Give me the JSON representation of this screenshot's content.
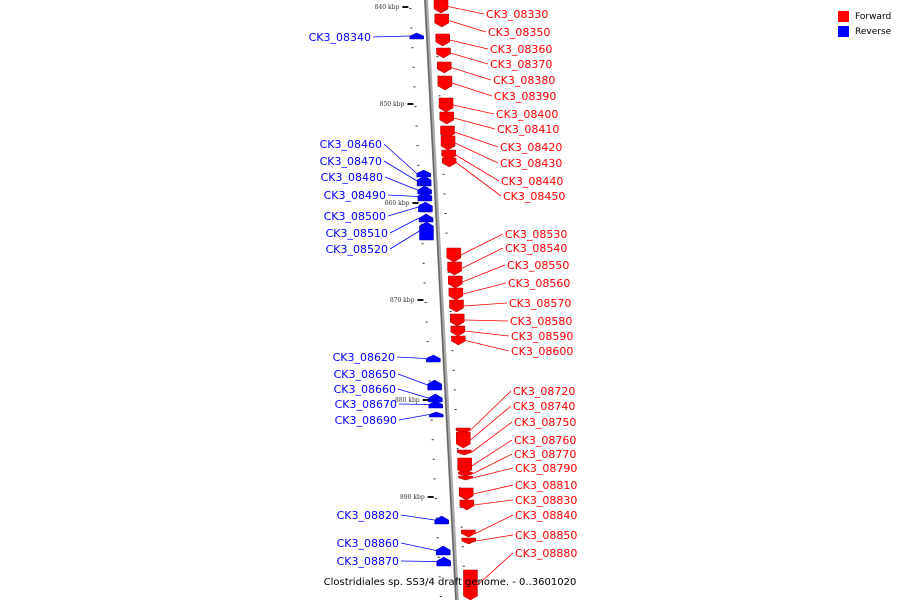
{
  "caption": "Clostridiales sp. SS3/4 draft genome. - 0..3601020",
  "legend": [
    {
      "label": "Forward",
      "color": "#ff0000"
    },
    {
      "label": "Reverse",
      "color": "#0000ff"
    }
  ],
  "ticks": [
    "840 kbp",
    "850 kbp",
    "860 kbp",
    "870 kbp",
    "880 kbp",
    "890 kbp"
  ],
  "forward_genes": [
    "CK3_08330",
    "CK3_08350",
    "CK3_08360",
    "CK3_08370",
    "CK3_08380",
    "CK3_08390",
    "CK3_08400",
    "CK3_08410",
    "CK3_08420",
    "CK3_08430",
    "CK3_08440",
    "CK3_08450",
    "CK3_08530",
    "CK3_08540",
    "CK3_08550",
    "CK3_08560",
    "CK3_08570",
    "CK3_08580",
    "CK3_08590",
    "CK3_08600",
    "CK3_08720",
    "CK3_08740",
    "CK3_08750",
    "CK3_08760",
    "CK3_08770",
    "CK3_08790",
    "CK3_08810",
    "CK3_08830",
    "CK3_08840",
    "CK3_08850",
    "CK3_08880"
  ],
  "reverse_genes": [
    "CK3_08340",
    "CK3_08460",
    "CK3_08470",
    "CK3_08480",
    "CK3_08490",
    "CK3_08500",
    "CK3_08510",
    "CK3_08520",
    "CK3_08620",
    "CK3_08650",
    "CK3_08660",
    "CK3_08670",
    "CK3_08690",
    "CK3_08820",
    "CK3_08860",
    "CK3_08870"
  ],
  "colors": {
    "forward": "#ff0000",
    "reverse": "#0000ff",
    "backbone": "#999999"
  }
}
